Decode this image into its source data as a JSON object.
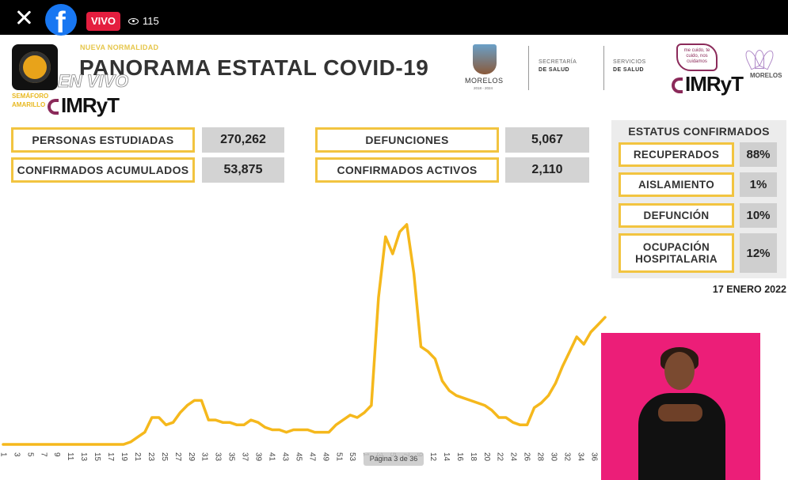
{
  "topbar": {
    "live_label": "VIVO",
    "viewer_count": "115"
  },
  "header": {
    "supertitle": "NUEVA NORMALIDAD",
    "title": "PANORAMA ESTATAL COVID-19",
    "live_overlay": "EN VIVO",
    "semaforo_label": "SEMÁFORO AMARILLO",
    "imryt": "IMRyT",
    "morelos": "MORELOS",
    "morelos_years": "2018 - 2024",
    "secretaria_line1": "SECRETARÍA",
    "secretaria_line2": "DE SALUD",
    "servicios_line1": "SERVICIOS",
    "servicios_line2": "DE SALUD",
    "mecuido": "me cuido, te cuido, nos cuidamos",
    "morelos_small": "MORELOS"
  },
  "stats": {
    "personas_estudiadas": {
      "label": "PERSONAS ESTUDIADAS",
      "value": "270,262"
    },
    "confirmados_acumulados": {
      "label": "CONFIRMADOS ACUMULADOS",
      "value": "53,875"
    },
    "defunciones": {
      "label": "DEFUNCIONES",
      "value": "5,067"
    },
    "confirmados_activos": {
      "label": "CONFIRMADOS ACTIVOS",
      "value": "2,110"
    }
  },
  "estatus": {
    "title": "ESTATUS CONFIRMADOS",
    "items": [
      {
        "label": "RECUPERADOS",
        "value": "88%"
      },
      {
        "label": "AISLAMIENTO",
        "value": "1%"
      },
      {
        "label": "DEFUNCIÓN",
        "value": "10%"
      },
      {
        "label": "OCUPACIÓN HOSPITALARIA",
        "value": "12%"
      }
    ]
  },
  "fecha": "17 ENERO 2022",
  "page_indicator": "Página 3 de 36",
  "colors": {
    "line": "#f5b81c",
    "box_border": "#f2c440",
    "interpreter_bg": "#ec1e78",
    "facebook": "#1877f2",
    "vivo": "#e41e3f"
  },
  "chart_data": {
    "type": "line",
    "title": "",
    "xlabel": "",
    "ylabel": "",
    "x_tick_labels": [
      "1",
      "3",
      "5",
      "7",
      "9",
      "11",
      "13",
      "15",
      "17",
      "19",
      "21",
      "23",
      "25",
      "27",
      "29",
      "31",
      "33",
      "35",
      "37",
      "39",
      "41",
      "43",
      "45",
      "47",
      "49",
      "51",
      "53",
      "1",
      "3",
      "5",
      "7",
      "9",
      "12",
      "14",
      "16",
      "18",
      "20",
      "22",
      "24",
      "26",
      "28",
      "30",
      "32",
      "34",
      "36"
    ],
    "series": [
      {
        "values": [
          0,
          0,
          0,
          0,
          0,
          0,
          0,
          0,
          0,
          0,
          0,
          0,
          0,
          0,
          0,
          0,
          0,
          0,
          1,
          3,
          5,
          11,
          11,
          8,
          9,
          13,
          16,
          18,
          18,
          10,
          10,
          9,
          9,
          8,
          8,
          10,
          9,
          7,
          6,
          6,
          5,
          6,
          6,
          6,
          5,
          5,
          5,
          8,
          10,
          12,
          11,
          13,
          16,
          60,
          85,
          78,
          87,
          90,
          70,
          40,
          38,
          35,
          26,
          22,
          20,
          19,
          18,
          17,
          16,
          14,
          11,
          11,
          9,
          8,
          8,
          15,
          17,
          20,
          25,
          32,
          38,
          44,
          41,
          46,
          49,
          52
        ]
      }
    ],
    "ylim": [
      0,
      100
    ],
    "grid": false
  }
}
